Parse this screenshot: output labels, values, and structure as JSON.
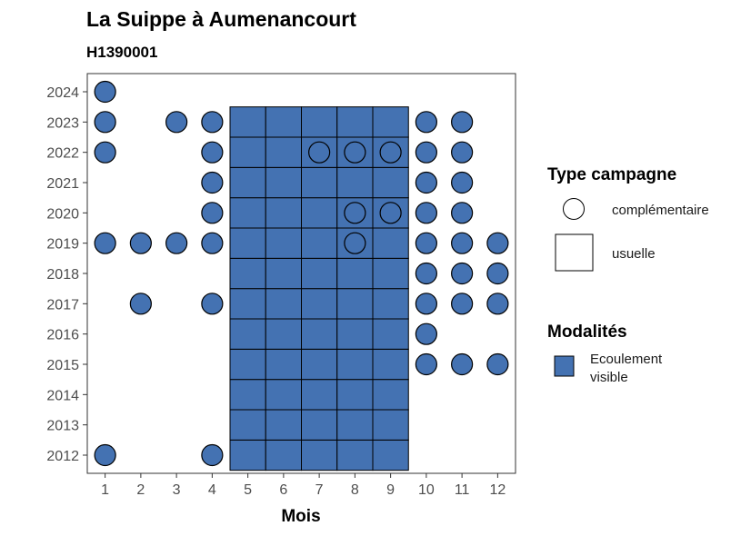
{
  "chart_data": {
    "type": "scatter",
    "title": "La Suippe à Aumenancourt",
    "subtitle": "H1390001",
    "xlabel": "Mois",
    "ylabel": "",
    "x_ticks": [
      1,
      2,
      3,
      4,
      5,
      6,
      7,
      8,
      9,
      10,
      11,
      12
    ],
    "y_ticks": [
      2012,
      2013,
      2014,
      2015,
      2016,
      2017,
      2018,
      2019,
      2020,
      2021,
      2022,
      2023,
      2024
    ],
    "xlim": [
      0.5,
      12.5
    ],
    "ylim": [
      2011.4,
      2024.6
    ],
    "grid": false,
    "legend_position": "right",
    "fill_color": "#4472b2",
    "usuelle": {
      "months": [
        5,
        6,
        7,
        8,
        9
      ],
      "years": [
        2012,
        2013,
        2014,
        2015,
        2016,
        2017,
        2018,
        2019,
        2020,
        2021,
        2022,
        2023
      ]
    },
    "complementaire_points": [
      {
        "x": 1,
        "y": 2024
      },
      {
        "x": 1,
        "y": 2023
      },
      {
        "x": 3,
        "y": 2023
      },
      {
        "x": 4,
        "y": 2023
      },
      {
        "x": 10,
        "y": 2023
      },
      {
        "x": 11,
        "y": 2023
      },
      {
        "x": 1,
        "y": 2022
      },
      {
        "x": 4,
        "y": 2022
      },
      {
        "x": 10,
        "y": 2022
      },
      {
        "x": 11,
        "y": 2022
      },
      {
        "x": 4,
        "y": 2021
      },
      {
        "x": 10,
        "y": 2021
      },
      {
        "x": 11,
        "y": 2021
      },
      {
        "x": 4,
        "y": 2020
      },
      {
        "x": 10,
        "y": 2020
      },
      {
        "x": 11,
        "y": 2020
      },
      {
        "x": 1,
        "y": 2019
      },
      {
        "x": 2,
        "y": 2019
      },
      {
        "x": 3,
        "y": 2019
      },
      {
        "x": 4,
        "y": 2019
      },
      {
        "x": 10,
        "y": 2019
      },
      {
        "x": 11,
        "y": 2019
      },
      {
        "x": 12,
        "y": 2019
      },
      {
        "x": 10,
        "y": 2018
      },
      {
        "x": 11,
        "y": 2018
      },
      {
        "x": 12,
        "y": 2018
      },
      {
        "x": 2,
        "y": 2017
      },
      {
        "x": 4,
        "y": 2017
      },
      {
        "x": 10,
        "y": 2017
      },
      {
        "x": 11,
        "y": 2017
      },
      {
        "x": 12,
        "y": 2017
      },
      {
        "x": 10,
        "y": 2016
      },
      {
        "x": 10,
        "y": 2015
      },
      {
        "x": 11,
        "y": 2015
      },
      {
        "x": 12,
        "y": 2015
      },
      {
        "x": 1,
        "y": 2012
      },
      {
        "x": 4,
        "y": 2012
      }
    ],
    "complementaire_overlay_points": [
      {
        "x": 7,
        "y": 2022
      },
      {
        "x": 8,
        "y": 2022
      },
      {
        "x": 9,
        "y": 2022
      },
      {
        "x": 8,
        "y": 2020
      },
      {
        "x": 9,
        "y": 2020
      },
      {
        "x": 8,
        "y": 2019
      }
    ],
    "legend": {
      "type_title": "Type campagne",
      "type_items": [
        "complémentaire",
        "usuelle"
      ],
      "modalites_title": "Modalités",
      "modalites_items": [
        {
          "line1": "Ecoulement",
          "line2": "visible"
        }
      ]
    }
  }
}
